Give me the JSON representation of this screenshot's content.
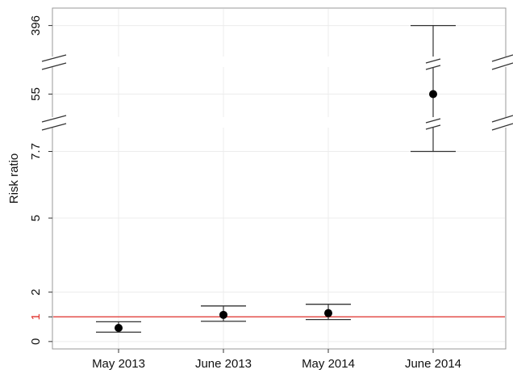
{
  "chart_data": {
    "type": "errorbar",
    "y_label": "Risk ratio",
    "categories": [
      "May 2013",
      "June 2013",
      "May 2014",
      "June 2014"
    ],
    "values": [
      0.55,
      1.08,
      1.15,
      55
    ],
    "lower": [
      0.38,
      0.82,
      0.89,
      7.7
    ],
    "upper": [
      0.8,
      1.44,
      1.51,
      396
    ],
    "color": "#000000",
    "y_segments": [
      {
        "ylim": [
          -0.3,
          8.6
        ]
      },
      {
        "ylim": [
          40,
          70
        ]
      },
      {
        "ylim": [
          350,
          420
        ]
      }
    ],
    "yticks": [
      0,
      1,
      2,
      5,
      7.7,
      55,
      396
    ],
    "reference_line": {
      "value": 1,
      "color": "#e0302a"
    },
    "grid": true
  }
}
